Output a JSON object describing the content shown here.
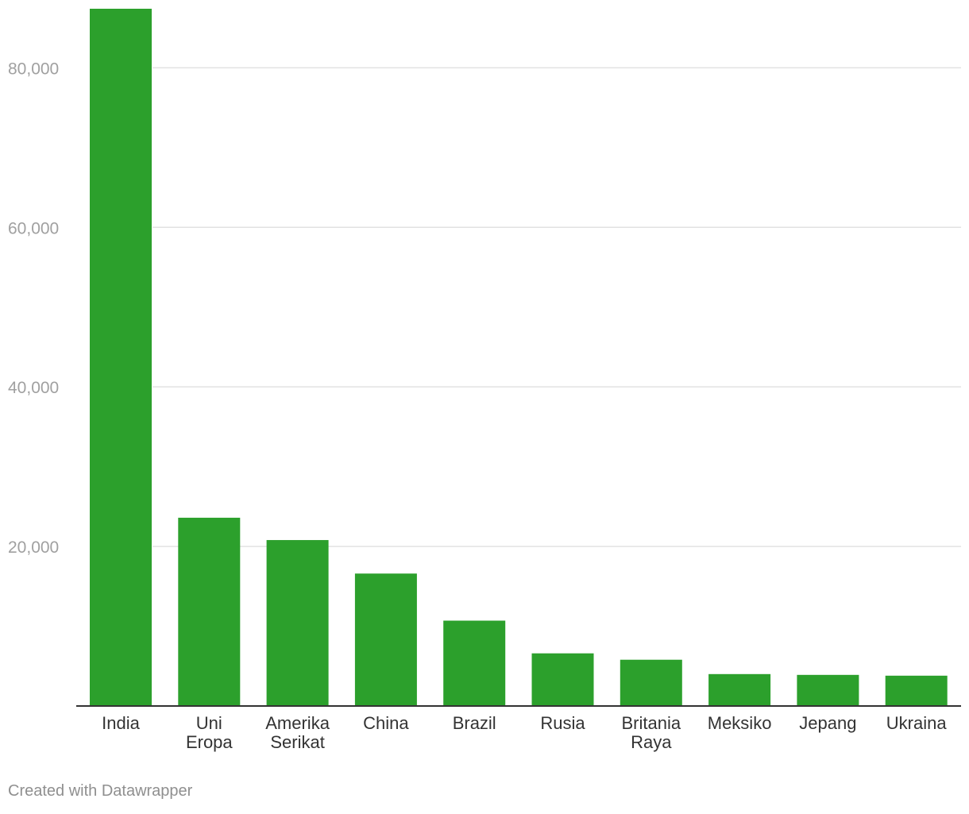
{
  "chart_data": {
    "type": "bar",
    "categories": [
      [
        "India"
      ],
      [
        "Uni",
        "Eropa"
      ],
      [
        "Amerika",
        "Serikat"
      ],
      [
        "China"
      ],
      [
        "Brazil"
      ],
      [
        "Rusia"
      ],
      [
        "Britania",
        "Raya"
      ],
      [
        "Meksiko"
      ],
      [
        "Jepang"
      ],
      [
        "Ukraina"
      ]
    ],
    "values": [
      87400,
      23600,
      20800,
      16600,
      10700,
      6600,
      5800,
      4000,
      3900,
      3800
    ],
    "ylim": [
      0,
      87500
    ],
    "yticks": [
      20000,
      40000,
      60000,
      80000
    ],
    "ytick_labels": [
      "20,000",
      "40,000",
      "60,000",
      "80,000"
    ],
    "grid": true,
    "bar_color": "#2ca02c",
    "title": "",
    "xlabel": "",
    "ylabel": ""
  },
  "footer": {
    "credit": "Created with Datawrapper"
  }
}
